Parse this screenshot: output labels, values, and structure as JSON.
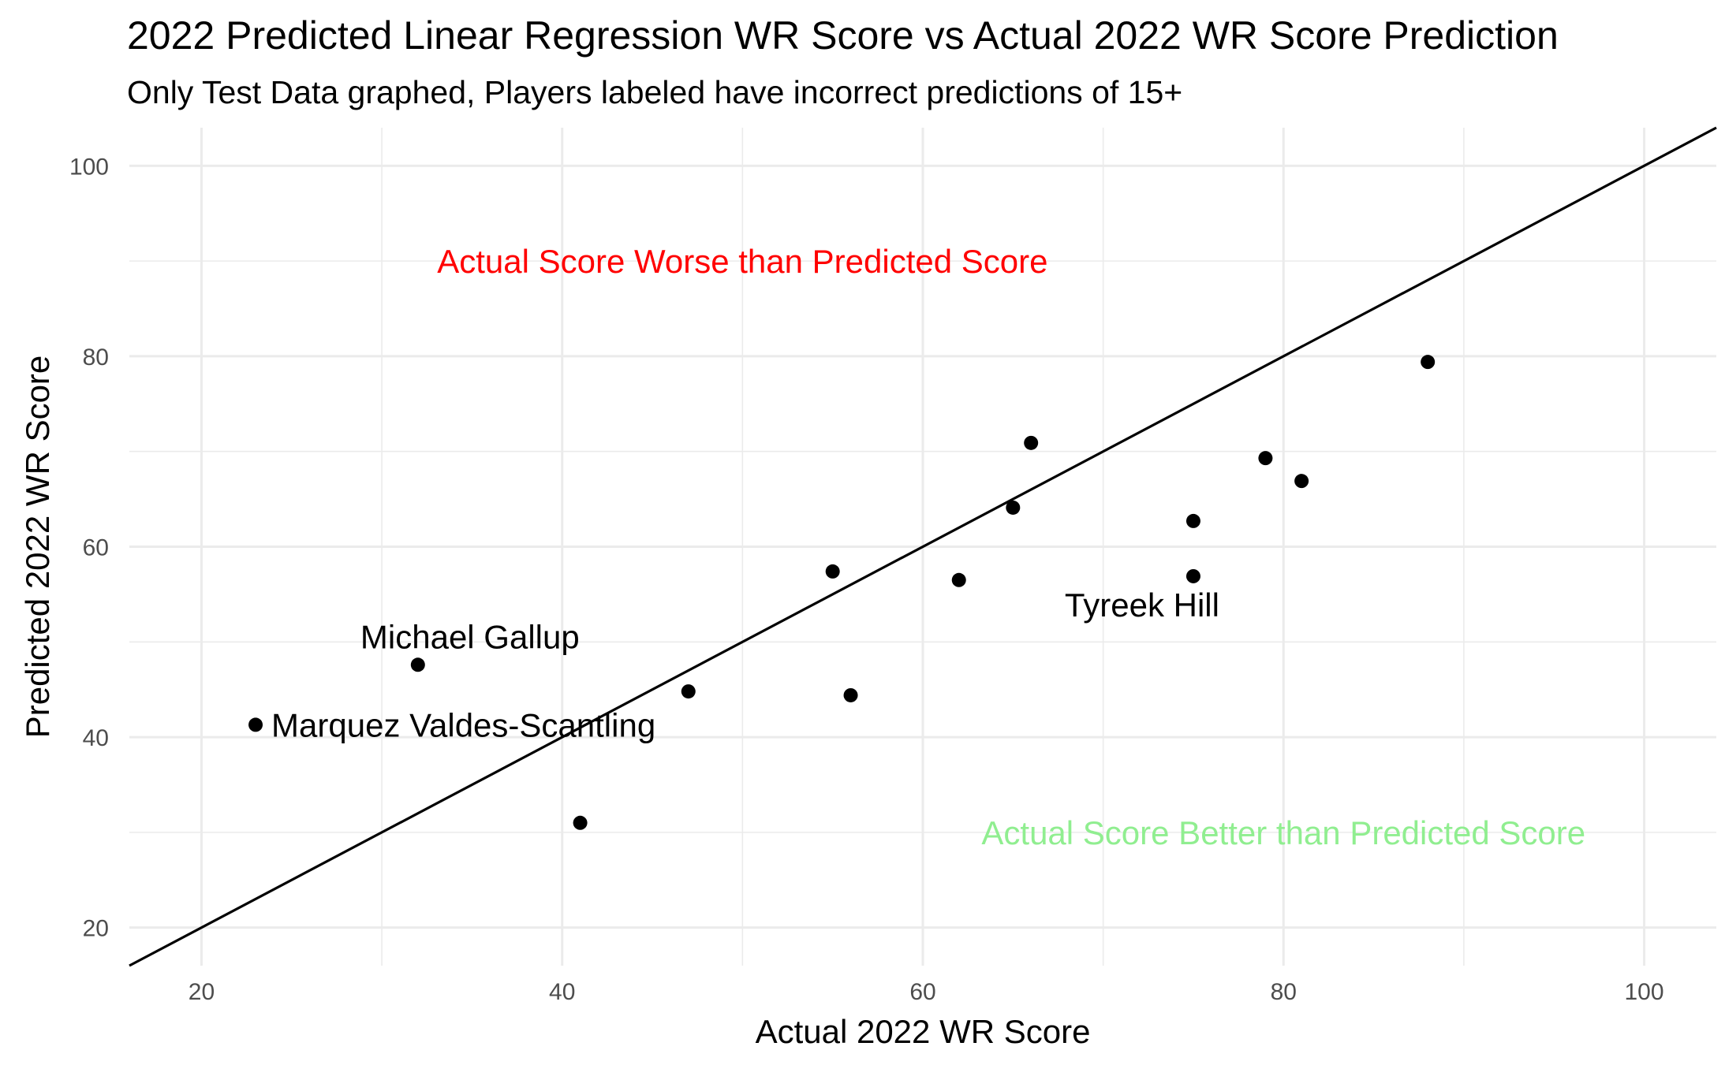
{
  "chart_data": {
    "type": "scatter",
    "title": "2022 Predicted Linear Regression WR Score vs Actual 2022 WR Score Prediction",
    "subtitle": "Only Test Data graphed, Players labeled have incorrect predictions of 15+",
    "xlabel": "Actual 2022 WR Score",
    "ylabel": "Predicted 2022 WR Score",
    "xlim": [
      16,
      104
    ],
    "ylim": [
      16,
      104
    ],
    "x_ticks": [
      20,
      40,
      60,
      80,
      100
    ],
    "y_ticks": [
      20,
      40,
      60,
      80,
      100
    ],
    "grid": true,
    "reference_line": {
      "slope": 1,
      "intercept": 0
    },
    "points": [
      {
        "x": 23,
        "y": 41.3,
        "label": "Marquez Valdes-Scantling"
      },
      {
        "x": 32,
        "y": 47.6,
        "label": "Michael Gallup"
      },
      {
        "x": 41,
        "y": 31.0,
        "label": ""
      },
      {
        "x": 47,
        "y": 44.8,
        "label": ""
      },
      {
        "x": 55,
        "y": 57.4,
        "label": ""
      },
      {
        "x": 56,
        "y": 44.4,
        "label": ""
      },
      {
        "x": 62,
        "y": 56.5,
        "label": ""
      },
      {
        "x": 65,
        "y": 64.1,
        "label": ""
      },
      {
        "x": 66,
        "y": 70.9,
        "label": ""
      },
      {
        "x": 75,
        "y": 62.7,
        "label": ""
      },
      {
        "x": 75,
        "y": 56.9,
        "label": "Tyreek Hill"
      },
      {
        "x": 79,
        "y": 69.3,
        "label": ""
      },
      {
        "x": 81,
        "y": 66.9,
        "label": ""
      },
      {
        "x": 88,
        "y": 79.4,
        "label": ""
      }
    ],
    "annotations": [
      {
        "text": "Actual Score Worse than Predicted Score",
        "x": 50,
        "y": 90,
        "color": "#ff0000"
      },
      {
        "text": "Actual Score Better than Predicted Score",
        "x": 80,
        "y": 30,
        "color": "#90ee90"
      }
    ],
    "colors": {
      "points": "#000000",
      "line": "#000000",
      "grid": "#ebebeb"
    }
  }
}
